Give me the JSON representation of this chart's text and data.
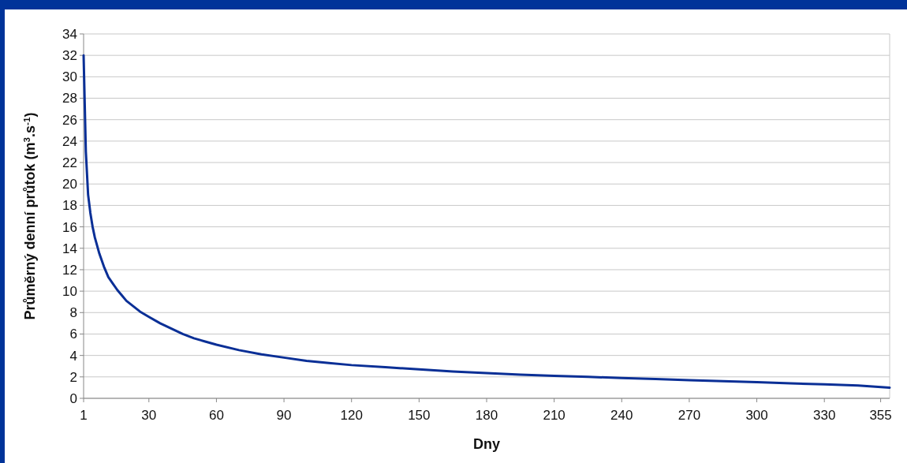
{
  "chart_data": {
    "type": "line",
    "xlabel": "Dny",
    "ylabel": "Průměrný denní průtok (m$^{3}$.s$^{-1}$)",
    "xlim": [
      1,
      359
    ],
    "xticks": [
      1,
      30,
      60,
      90,
      120,
      150,
      180,
      210,
      240,
      270,
      300,
      330,
      355
    ],
    "ylim": [
      0,
      34
    ],
    "yticks": [
      0,
      2,
      4,
      6,
      8,
      10,
      12,
      14,
      16,
      18,
      20,
      22,
      24,
      26,
      28,
      30,
      32,
      34
    ],
    "grid": "y",
    "marker": "none",
    "line_style": "solid",
    "series": [
      {
        "color": "#0a2f96",
        "x": [
          1,
          2,
          3,
          4,
          5,
          6,
          8,
          10,
          12,
          14,
          16,
          18,
          20,
          23,
          26,
          30,
          35,
          40,
          45,
          50,
          55,
          60,
          70,
          80,
          90,
          100,
          110,
          120,
          135,
          150,
          165,
          180,
          195,
          210,
          225,
          240,
          255,
          270,
          285,
          300,
          315,
          330,
          345,
          359
        ],
        "values": [
          32,
          23,
          19,
          17.3,
          16,
          15,
          13.5,
          12.3,
          11.3,
          10.7,
          10.1,
          9.6,
          9.1,
          8.6,
          8.1,
          7.6,
          7,
          6.5,
          6,
          5.6,
          5.3,
          5,
          4.5,
          4.1,
          3.8,
          3.5,
          3.3,
          3.1,
          2.9,
          2.7,
          2.5,
          2.35,
          2.2,
          2.1,
          2,
          1.9,
          1.8,
          1.7,
          1.6,
          1.5,
          1.4,
          1.3,
          1.2,
          1
        ]
      }
    ]
  }
}
